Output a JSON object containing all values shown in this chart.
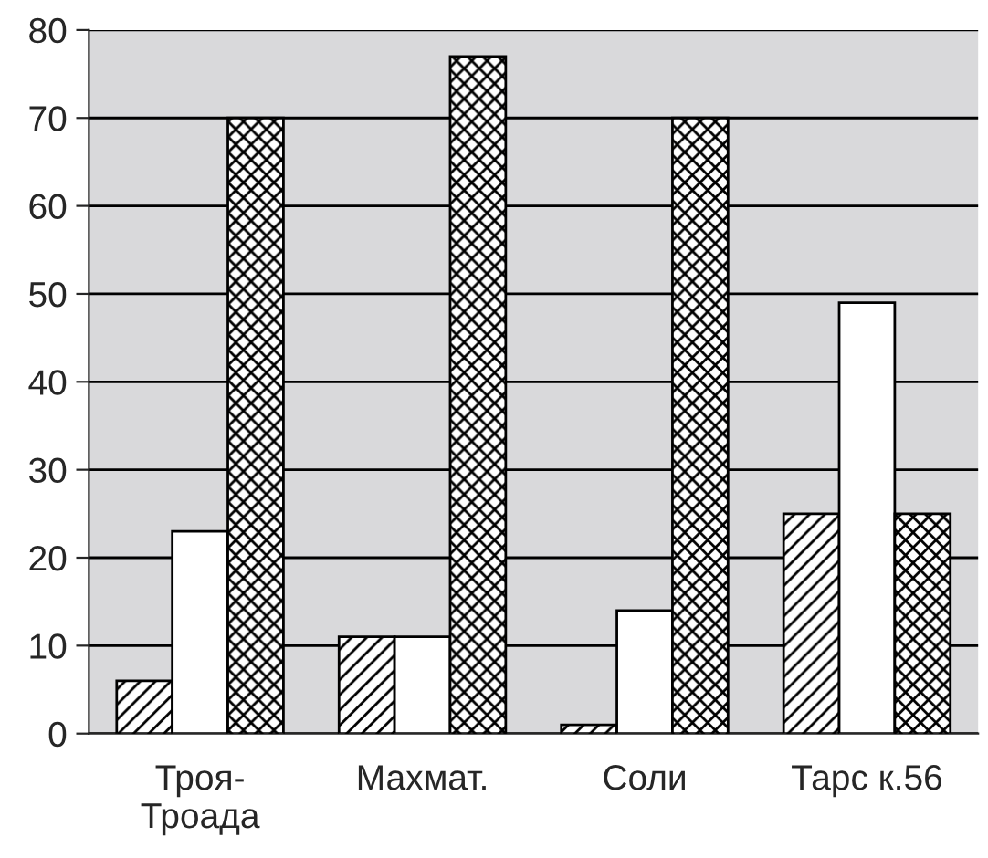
{
  "chart_data": {
    "type": "bar",
    "categories": [
      "Троя-\nТроада",
      "Махмат.",
      "Соли",
      "Тарс к.56"
    ],
    "series": [
      {
        "color": "#000000",
        "values": [
          6,
          11,
          1,
          25
        ]
      },
      {
        "color": "#ffffff",
        "values": [
          23,
          11,
          14,
          49
        ]
      },
      {
        "color": "#000000",
        "values": [
          70,
          77,
          70,
          25
        ]
      }
    ],
    "ylim": [
      0,
      80
    ],
    "yticks": [
      0,
      10,
      20,
      30,
      40,
      50,
      60,
      70,
      80
    ],
    "grid": "y"
  }
}
